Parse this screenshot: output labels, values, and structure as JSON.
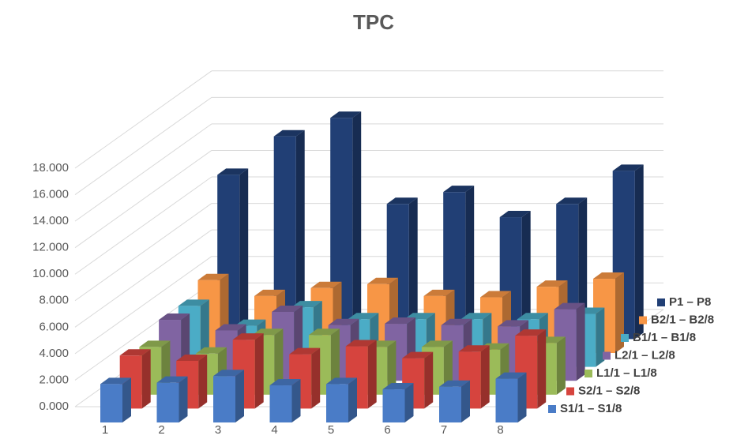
{
  "chart_data": {
    "type": "bar3d",
    "title": "TPC",
    "categories": [
      "1",
      "2",
      "3",
      "4",
      "5",
      "6",
      "7",
      "8"
    ],
    "ylim": [
      0,
      18000
    ],
    "yticks": [
      {
        "value": 0,
        "label": "0.000"
      },
      {
        "value": 2000,
        "label": "2.000"
      },
      {
        "value": 4000,
        "label": "4.000"
      },
      {
        "value": 6000,
        "label": "6.000"
      },
      {
        "value": 8000,
        "label": "8.000"
      },
      {
        "value": 10000,
        "label": "10.000"
      },
      {
        "value": 12000,
        "label": "12.000"
      },
      {
        "value": 14000,
        "label": "14.000"
      },
      {
        "value": 16000,
        "label": "16.000"
      },
      {
        "value": 18000,
        "label": "18.000"
      }
    ],
    "grid": true,
    "series": [
      {
        "name": "S1/1 – S1/8",
        "color": "#4a7cc7",
        "values": [
          2900,
          3000,
          3500,
          2800,
          2900,
          2500,
          2700,
          3300
        ]
      },
      {
        "name": "S2/1 – S2/8",
        "color": "#d6443e",
        "values": [
          4000,
          3600,
          5200,
          4100,
          4700,
          3800,
          4300,
          5500
        ]
      },
      {
        "name": "L1/1 – L1/8",
        "color": "#9bbb59",
        "values": [
          3600,
          3100,
          4500,
          4500,
          3600,
          3600,
          3400,
          3900
        ]
      },
      {
        "name": "L2/1 – L2/8",
        "color": "#8064a2",
        "values": [
          4600,
          3800,
          5200,
          4200,
          4300,
          4200,
          4100,
          5400
        ]
      },
      {
        "name": "B1/1 – B1/8",
        "color": "#4bacc6",
        "values": [
          4600,
          3100,
          4500,
          3600,
          3600,
          3600,
          3600,
          4000
        ]
      },
      {
        "name": "B2/1 – B2/8",
        "color": "#f79646",
        "values": [
          5500,
          4300,
          4900,
          5200,
          4300,
          4200,
          5000,
          5600
        ]
      },
      {
        "name": "P1 – P8",
        "color": "#213f75",
        "values": [
          12400,
          15300,
          16700,
          10200,
          11100,
          9200,
          10200,
          12700
        ]
      }
    ]
  }
}
